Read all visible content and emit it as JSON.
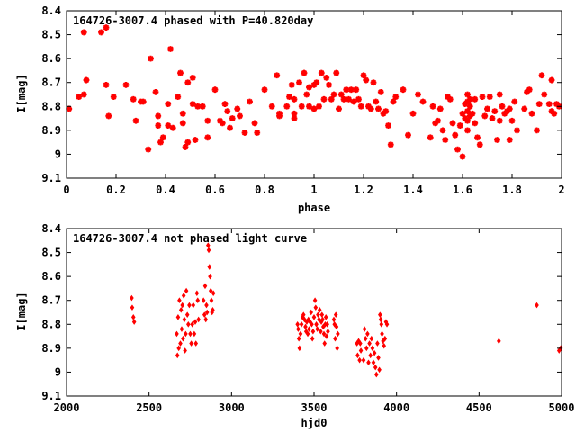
{
  "chart_data": [
    {
      "type": "scatter",
      "title": "164726-3007.4 phased with P=40.820day",
      "xlabel": "phase",
      "ylabel": "I[mag]",
      "xlim": [
        0,
        2
      ],
      "ylim": [
        9.1,
        8.4
      ],
      "y_inverted": true,
      "xticks": [
        "0",
        "0.2",
        "0.4",
        "0.6",
        "0.8",
        "1",
        "1.2",
        "1.4",
        "1.6",
        "1.8",
        "2"
      ],
      "yticks": [
        "8.4",
        "8.5",
        "8.6",
        "8.7",
        "8.8",
        "8.9",
        "9",
        "9.1"
      ],
      "marker_color": "#ff0000",
      "marker": "star",
      "points": [
        [
          0.01,
          8.81
        ],
        [
          0.05,
          8.76
        ],
        [
          0.07,
          8.49
        ],
        [
          0.07,
          8.75
        ],
        [
          0.08,
          8.69
        ],
        [
          0.14,
          8.49
        ],
        [
          0.16,
          8.47
        ],
        [
          0.16,
          8.71
        ],
        [
          0.17,
          8.84
        ],
        [
          0.19,
          8.76
        ],
        [
          0.24,
          8.71
        ],
        [
          0.27,
          8.77
        ],
        [
          0.28,
          8.86
        ],
        [
          0.3,
          8.78
        ],
        [
          0.31,
          8.78
        ],
        [
          0.33,
          8.98
        ],
        [
          0.34,
          8.6
        ],
        [
          0.36,
          8.74
        ],
        [
          0.37,
          8.84
        ],
        [
          0.37,
          8.88
        ],
        [
          0.38,
          8.95
        ],
        [
          0.39,
          8.93
        ],
        [
          0.41,
          8.79
        ],
        [
          0.41,
          8.88
        ],
        [
          0.42,
          8.56
        ],
        [
          0.43,
          8.89
        ],
        [
          0.45,
          8.76
        ],
        [
          0.46,
          8.66
        ],
        [
          0.47,
          8.83
        ],
        [
          0.47,
          8.87
        ],
        [
          0.48,
          8.97
        ],
        [
          0.49,
          8.95
        ],
        [
          0.49,
          8.7
        ],
        [
          0.51,
          8.79
        ],
        [
          0.51,
          8.68
        ],
        [
          0.52,
          8.94
        ],
        [
          0.53,
          8.8
        ],
        [
          0.55,
          8.8
        ],
        [
          0.57,
          8.93
        ],
        [
          0.57,
          8.86
        ],
        [
          0.6,
          8.73
        ],
        [
          0.62,
          8.86
        ],
        [
          0.63,
          8.87
        ],
        [
          0.64,
          8.79
        ],
        [
          0.65,
          8.82
        ],
        [
          0.66,
          8.89
        ],
        [
          0.67,
          8.85
        ],
        [
          0.69,
          8.81
        ],
        [
          0.7,
          8.84
        ],
        [
          0.72,
          8.91
        ],
        [
          0.74,
          8.78
        ],
        [
          0.76,
          8.87
        ],
        [
          0.77,
          8.91
        ],
        [
          0.8,
          8.73
        ],
        [
          0.83,
          8.8
        ],
        [
          0.85,
          8.67
        ],
        [
          0.86,
          8.84
        ],
        [
          0.86,
          8.83
        ],
        [
          0.89,
          8.8
        ],
        [
          0.9,
          8.76
        ],
        [
          0.91,
          8.71
        ],
        [
          0.92,
          8.77
        ],
        [
          0.92,
          8.83
        ],
        [
          0.92,
          8.85
        ],
        [
          0.94,
          8.7
        ],
        [
          0.95,
          8.8
        ],
        [
          0.96,
          8.66
        ],
        [
          0.97,
          8.75
        ],
        [
          0.98,
          8.8
        ],
        [
          0.98,
          8.72
        ],
        [
          1.0,
          8.71
        ],
        [
          1.0,
          8.81
        ],
        [
          1.01,
          8.7
        ],
        [
          1.02,
          8.8
        ],
        [
          1.03,
          8.66
        ],
        [
          1.04,
          8.77
        ],
        [
          1.05,
          8.68
        ],
        [
          1.06,
          8.71
        ],
        [
          1.07,
          8.77
        ],
        [
          1.08,
          8.75
        ],
        [
          1.09,
          8.66
        ],
        [
          1.1,
          8.81
        ],
        [
          1.11,
          8.75
        ],
        [
          1.12,
          8.77
        ],
        [
          1.13,
          8.73
        ],
        [
          1.14,
          8.77
        ],
        [
          1.15,
          8.73
        ],
        [
          1.16,
          8.78
        ],
        [
          1.17,
          8.73
        ],
        [
          1.18,
          8.77
        ],
        [
          1.19,
          8.8
        ],
        [
          1.2,
          8.67
        ],
        [
          1.21,
          8.69
        ],
        [
          1.22,
          8.8
        ],
        [
          1.23,
          8.81
        ],
        [
          1.24,
          8.7
        ],
        [
          1.25,
          8.78
        ],
        [
          1.26,
          8.81
        ],
        [
          1.27,
          8.74
        ],
        [
          1.28,
          8.83
        ],
        [
          1.29,
          8.82
        ],
        [
          1.3,
          8.88
        ],
        [
          1.31,
          8.96
        ],
        [
          1.32,
          8.78
        ],
        [
          1.33,
          8.76
        ],
        [
          1.36,
          8.73
        ],
        [
          1.38,
          8.92
        ],
        [
          1.4,
          8.83
        ],
        [
          1.42,
          8.75
        ],
        [
          1.44,
          8.78
        ],
        [
          1.47,
          8.93
        ],
        [
          1.48,
          8.8
        ],
        [
          1.49,
          8.87
        ],
        [
          1.5,
          8.86
        ],
        [
          1.51,
          8.81
        ],
        [
          1.52,
          8.9
        ],
        [
          1.53,
          8.94
        ],
        [
          1.54,
          8.76
        ],
        [
          1.55,
          8.77
        ],
        [
          1.56,
          8.87
        ],
        [
          1.57,
          8.92
        ],
        [
          1.58,
          8.98
        ],
        [
          1.59,
          8.88
        ],
        [
          1.6,
          9.01
        ],
        [
          1.6,
          8.83
        ],
        [
          1.61,
          8.79
        ],
        [
          1.61,
          8.85
        ],
        [
          1.62,
          8.75
        ],
        [
          1.62,
          8.78
        ],
        [
          1.62,
          8.82
        ],
        [
          1.62,
          8.86
        ],
        [
          1.62,
          8.9
        ],
        [
          1.63,
          8.8
        ],
        [
          1.63,
          8.84
        ],
        [
          1.63,
          8.77
        ],
        [
          1.64,
          8.83
        ],
        [
          1.65,
          8.77
        ],
        [
          1.65,
          8.87
        ],
        [
          1.66,
          8.93
        ],
        [
          1.67,
          8.96
        ],
        [
          1.68,
          8.76
        ],
        [
          1.69,
          8.84
        ],
        [
          1.7,
          8.81
        ],
        [
          1.71,
          8.76
        ],
        [
          1.72,
          8.85
        ],
        [
          1.73,
          8.82
        ],
        [
          1.74,
          8.94
        ],
        [
          1.75,
          8.75
        ],
        [
          1.75,
          8.86
        ],
        [
          1.76,
          8.8
        ],
        [
          1.77,
          8.83
        ],
        [
          1.78,
          8.82
        ],
        [
          1.79,
          8.81
        ],
        [
          1.79,
          8.94
        ],
        [
          1.8,
          8.86
        ],
        [
          1.81,
          8.78
        ],
        [
          1.82,
          8.9
        ],
        [
          1.85,
          8.81
        ],
        [
          1.86,
          8.74
        ],
        [
          1.87,
          8.73
        ],
        [
          1.88,
          8.83
        ],
        [
          1.9,
          8.9
        ],
        [
          1.91,
          8.79
        ],
        [
          1.92,
          8.67
        ],
        [
          1.93,
          8.75
        ],
        [
          1.95,
          8.79
        ],
        [
          1.96,
          8.69
        ],
        [
          1.96,
          8.82
        ],
        [
          1.97,
          8.83
        ],
        [
          1.98,
          8.79
        ],
        [
          1.99,
          8.8
        ]
      ]
    },
    {
      "type": "scatter",
      "title": "164726-3007.4 not phased light curve",
      "xlabel": "hjd0",
      "ylabel": "I[mag]",
      "xlim": [
        2000,
        5000
      ],
      "ylim": [
        9.1,
        8.4
      ],
      "y_inverted": true,
      "xticks": [
        "2000",
        "2500",
        "3000",
        "3500",
        "4000",
        "4500",
        "5000"
      ],
      "yticks": [
        "8.4",
        "8.5",
        "8.6",
        "8.7",
        "8.8",
        "8.9",
        "9",
        "9.1"
      ],
      "marker_color": "#ff0000",
      "marker": "diamond",
      "points": [
        [
          2395,
          8.69
        ],
        [
          2398,
          8.73
        ],
        [
          2405,
          8.77
        ],
        [
          2410,
          8.79
        ],
        [
          2668,
          8.84
        ],
        [
          2672,
          8.93
        ],
        [
          2676,
          8.77
        ],
        [
          2680,
          8.9
        ],
        [
          2684,
          8.7
        ],
        [
          2690,
          8.88
        ],
        [
          2694,
          8.74
        ],
        [
          2698,
          8.82
        ],
        [
          2702,
          8.72
        ],
        [
          2706,
          8.86
        ],
        [
          2710,
          8.68
        ],
        [
          2714,
          8.78
        ],
        [
          2718,
          8.91
        ],
        [
          2722,
          8.84
        ],
        [
          2726,
          8.66
        ],
        [
          2732,
          8.76
        ],
        [
          2738,
          8.8
        ],
        [
          2744,
          8.72
        ],
        [
          2750,
          8.84
        ],
        [
          2756,
          8.88
        ],
        [
          2762,
          8.8
        ],
        [
          2768,
          8.72
        ],
        [
          2774,
          8.84
        ],
        [
          2780,
          8.79
        ],
        [
          2784,
          8.88
        ],
        [
          2790,
          8.67
        ],
        [
          2795,
          8.7
        ],
        [
          2800,
          8.78
        ],
        [
          2830,
          8.7
        ],
        [
          2836,
          8.76
        ],
        [
          2840,
          8.64
        ],
        [
          2844,
          8.78
        ],
        [
          2848,
          8.72
        ],
        [
          2852,
          8.75
        ],
        [
          2858,
          8.47
        ],
        [
          2862,
          8.49
        ],
        [
          2866,
          8.56
        ],
        [
          2870,
          8.6
        ],
        [
          2874,
          8.66
        ],
        [
          2878,
          8.7
        ],
        [
          2882,
          8.75
        ],
        [
          2886,
          8.74
        ],
        [
          2890,
          8.67
        ],
        [
          3400,
          8.8
        ],
        [
          3404,
          8.82
        ],
        [
          3408,
          8.86
        ],
        [
          3412,
          8.9
        ],
        [
          3418,
          8.84
        ],
        [
          3424,
          8.8
        ],
        [
          3430,
          8.77
        ],
        [
          3436,
          8.76
        ],
        [
          3442,
          8.78
        ],
        [
          3448,
          8.81
        ],
        [
          3452,
          8.83
        ],
        [
          3456,
          8.79
        ],
        [
          3462,
          8.84
        ],
        [
          3466,
          8.78
        ],
        [
          3470,
          8.82
        ],
        [
          3476,
          8.79
        ],
        [
          3482,
          8.75
        ],
        [
          3486,
          8.8
        ],
        [
          3490,
          8.86
        ],
        [
          3494,
          8.83
        ],
        [
          3500,
          8.77
        ],
        [
          3506,
          8.7
        ],
        [
          3510,
          8.73
        ],
        [
          3514,
          8.8
        ],
        [
          3520,
          8.82
        ],
        [
          3524,
          8.76
        ],
        [
          3530,
          8.78
        ],
        [
          3534,
          8.74
        ],
        [
          3540,
          8.83
        ],
        [
          3544,
          8.79
        ],
        [
          3548,
          8.76
        ],
        [
          3552,
          8.78
        ],
        [
          3556,
          8.81
        ],
        [
          3560,
          8.84
        ],
        [
          3564,
          8.88
        ],
        [
          3568,
          8.8
        ],
        [
          3572,
          8.77
        ],
        [
          3576,
          8.85
        ],
        [
          3580,
          8.8
        ],
        [
          3584,
          8.83
        ],
        [
          3620,
          8.78
        ],
        [
          3624,
          8.8
        ],
        [
          3628,
          8.86
        ],
        [
          3632,
          8.76
        ],
        [
          3636,
          8.81
        ],
        [
          3640,
          8.9
        ],
        [
          3644,
          8.84
        ],
        [
          3760,
          8.88
        ],
        [
          3764,
          8.93
        ],
        [
          3770,
          8.87
        ],
        [
          3776,
          8.95
        ],
        [
          3780,
          8.88
        ],
        [
          3784,
          8.91
        ],
        [
          3800,
          8.95
        ],
        [
          3806,
          8.82
        ],
        [
          3812,
          8.86
        ],
        [
          3818,
          8.9
        ],
        [
          3824,
          8.84
        ],
        [
          3830,
          8.96
        ],
        [
          3836,
          8.88
        ],
        [
          3842,
          8.93
        ],
        [
          3848,
          8.86
        ],
        [
          3854,
          8.9
        ],
        [
          3860,
          8.96
        ],
        [
          3866,
          8.92
        ],
        [
          3872,
          8.98
        ],
        [
          3878,
          9.01
        ],
        [
          3884,
          8.88
        ],
        [
          3890,
          8.94
        ],
        [
          3896,
          8.99
        ],
        [
          3900,
          8.76
        ],
        [
          3904,
          8.78
        ],
        [
          3908,
          8.8
        ],
        [
          3912,
          8.84
        ],
        [
          3918,
          8.87
        ],
        [
          3924,
          8.89
        ],
        [
          3930,
          8.86
        ],
        [
          3936,
          8.79
        ],
        [
          3942,
          8.8
        ],
        [
          4620,
          8.87
        ],
        [
          4850,
          8.72
        ],
        [
          4985,
          8.91
        ],
        [
          4995,
          8.9
        ]
      ]
    }
  ]
}
